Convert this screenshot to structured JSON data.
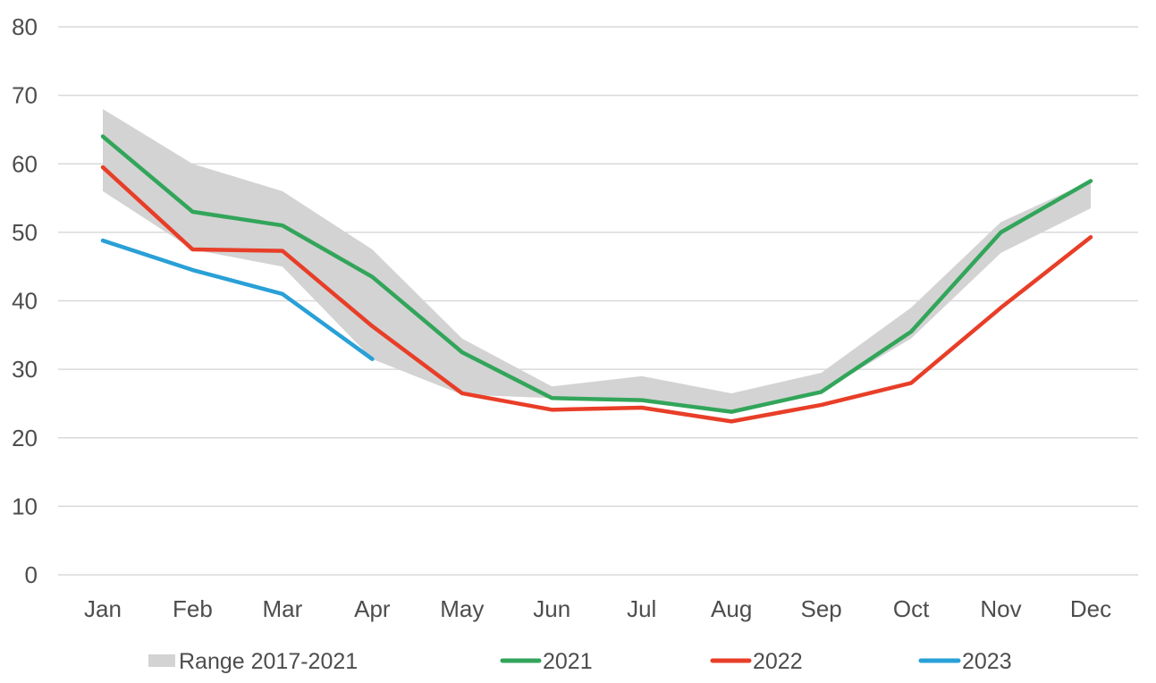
{
  "chart_data": {
    "type": "line",
    "title": "",
    "xlabel": "",
    "ylabel": "",
    "categories": [
      "Jan",
      "Feb",
      "Mar",
      "Apr",
      "May",
      "Jun",
      "Jul",
      "Aug",
      "Sep",
      "Oct",
      "Nov",
      "Dec"
    ],
    "y_axis": {
      "min": 0,
      "max": 80,
      "tick_interval": 10,
      "tick_labels": [
        "0",
        "10",
        "20",
        "30",
        "40",
        "50",
        "60",
        "70",
        "80"
      ]
    },
    "grid": true,
    "background_color": "#ffffff",
    "gridline_color": "#d9d9d9",
    "text_color": "#4d4d4d",
    "series": [
      {
        "name": "Range 2017-2021",
        "type": "band",
        "color": "#d3d3d3",
        "high": [
          68,
          60,
          56,
          47.5,
          34.5,
          27.5,
          29,
          26.5,
          29.5,
          39,
          51.5,
          57.5
        ],
        "low": [
          56,
          47.5,
          45,
          31.5,
          26.3,
          25.8,
          25.5,
          23.8,
          26.7,
          34.5,
          47,
          53.5
        ]
      },
      {
        "name": "2021",
        "type": "line",
        "color": "#32a55a",
        "values": [
          64,
          53,
          51,
          43.5,
          32.5,
          25.8,
          25.5,
          23.8,
          26.7,
          35.5,
          50,
          57.5
        ]
      },
      {
        "name": "2022",
        "type": "line",
        "color": "#e83e28",
        "values": [
          59.5,
          47.5,
          47.3,
          36.3,
          26.5,
          24.1,
          24.4,
          22.4,
          24.8,
          28,
          39,
          49.3
        ]
      },
      {
        "name": "2023",
        "type": "line",
        "color": "#29a0d7",
        "values": [
          48.8,
          44.5,
          41,
          31.5,
          null,
          null,
          null,
          null,
          null,
          null,
          null,
          null
        ]
      }
    ],
    "legend": {
      "position": "bottom",
      "entries": [
        "Range 2017-2021",
        "2021",
        "2022",
        "2023"
      ]
    }
  }
}
